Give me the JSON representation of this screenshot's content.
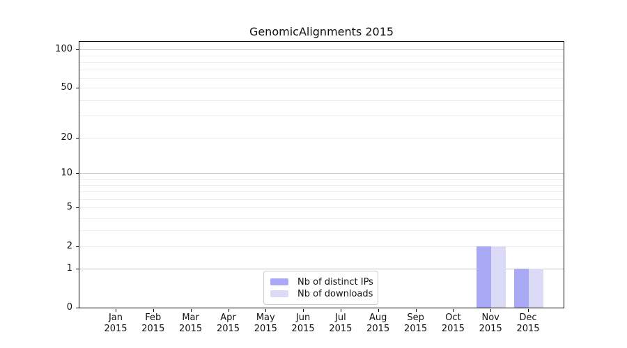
{
  "chart_data": {
    "type": "bar",
    "title": "GenomicAlignments 2015",
    "scale": "log1p",
    "months": [
      "Jan",
      "Feb",
      "Mar",
      "Apr",
      "May",
      "Jun",
      "Jul",
      "Aug",
      "Sep",
      "Oct",
      "Nov",
      "Dec"
    ],
    "year": "2015",
    "series": [
      {
        "name": "Nb of distinct IPs",
        "color": "#a9a9f5",
        "values": [
          0,
          0,
          0,
          0,
          0,
          0,
          0,
          0,
          0,
          0,
          2,
          1
        ]
      },
      {
        "name": "Nb of downloads",
        "color": "#dbdbf8",
        "values": [
          0,
          0,
          0,
          0,
          0,
          0,
          0,
          0,
          0,
          0,
          2,
          1
        ]
      }
    ],
    "yticks": [
      0,
      1,
      2,
      5,
      10,
      20,
      50,
      100
    ],
    "ylim": [
      0,
      115
    ],
    "grid_major_values": [
      1,
      10,
      100
    ],
    "grid_minor_values": [
      2,
      3,
      4,
      5,
      6,
      7,
      8,
      9,
      20,
      30,
      40,
      50,
      60,
      70,
      80,
      90
    ],
    "grid": true,
    "legend_position": "lower center"
  },
  "colors": {
    "grid_major": "#c6c6c6",
    "grid_minor": "#ededed",
    "spine": "#000000",
    "text": "#111111",
    "legend_border": "#cccccc",
    "background": "#ffffff"
  }
}
